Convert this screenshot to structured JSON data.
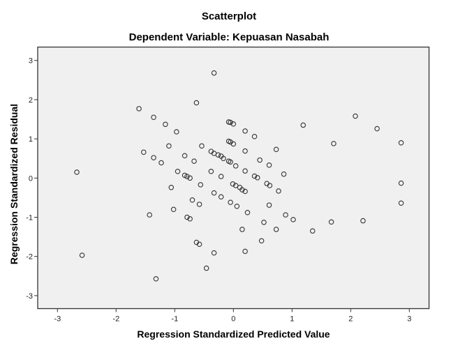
{
  "chart_data": {
    "type": "scatter",
    "title": "Scatterplot",
    "subtitle": "Dependent Variable: Kepuasan Nasabah",
    "xlabel": "Regression Standardized Predicted Value",
    "ylabel": "Regression Standardized Residual",
    "xlim": [
      -3.34,
      3.34
    ],
    "ylim": [
      -3.34,
      3.34
    ],
    "xticks": [
      -3,
      -2,
      -1,
      0,
      1,
      2,
      3
    ],
    "yticks": [
      -3,
      -2,
      -1,
      0,
      1,
      2,
      3
    ],
    "grid": false,
    "legend": null,
    "marker": "open-circle",
    "colors": {
      "plot_background": "#f0f0f0",
      "axis": "#333333",
      "marker": "#333333"
    },
    "points": [
      [
        -0.33,
        2.68
      ],
      [
        -0.63,
        1.92
      ],
      [
        -1.61,
        1.77
      ],
      [
        -1.36,
        1.55
      ],
      [
        -1.16,
        1.37
      ],
      [
        -0.97,
        1.18
      ],
      [
        -0.08,
        1.43
      ],
      [
        -0.05,
        1.42
      ],
      [
        0.0,
        1.38
      ],
      [
        0.2,
        1.2
      ],
      [
        0.36,
        1.06
      ],
      [
        1.19,
        1.35
      ],
      [
        2.08,
        1.58
      ],
      [
        2.45,
        1.26
      ],
      [
        1.71,
        0.88
      ],
      [
        2.86,
        0.9
      ],
      [
        -1.1,
        0.82
      ],
      [
        -1.53,
        0.66
      ],
      [
        -1.36,
        0.52
      ],
      [
        -1.23,
        0.39
      ],
      [
        -0.54,
        0.82
      ],
      [
        -0.08,
        0.94
      ],
      [
        -0.05,
        0.92
      ],
      [
        0.0,
        0.87
      ],
      [
        0.2,
        0.69
      ],
      [
        0.73,
        0.73
      ],
      [
        -0.83,
        0.57
      ],
      [
        -0.67,
        0.43
      ],
      [
        -0.38,
        0.68
      ],
      [
        -0.33,
        0.63
      ],
      [
        -0.26,
        0.59
      ],
      [
        -0.21,
        0.56
      ],
      [
        -0.17,
        0.5
      ],
      [
        -0.08,
        0.43
      ],
      [
        -0.05,
        0.41
      ],
      [
        0.04,
        0.31
      ],
      [
        0.45,
        0.46
      ],
      [
        0.61,
        0.33
      ],
      [
        -2.67,
        0.15
      ],
      [
        -0.95,
        0.17
      ],
      [
        -0.38,
        0.17
      ],
      [
        -0.21,
        0.04
      ],
      [
        0.2,
        0.18
      ],
      [
        -0.83,
        0.07
      ],
      [
        -0.79,
        0.04
      ],
      [
        -0.74,
        0.0
      ],
      [
        0.36,
        0.05
      ],
      [
        0.41,
        0.01
      ],
      [
        0.86,
        0.1
      ],
      [
        -1.06,
        -0.24
      ],
      [
        -1.02,
        -0.8
      ],
      [
        -1.43,
        -0.94
      ],
      [
        -2.58,
        -1.97
      ],
      [
        -1.32,
        -2.57
      ],
      [
        -0.56,
        -0.17
      ],
      [
        -0.33,
        -0.38
      ],
      [
        -0.21,
        -0.48
      ],
      [
        -0.01,
        -0.15
      ],
      [
        0.04,
        -0.19
      ],
      [
        0.11,
        -0.24
      ],
      [
        0.15,
        -0.3
      ],
      [
        0.2,
        -0.34
      ],
      [
        0.57,
        -0.14
      ],
      [
        0.62,
        -0.19
      ],
      [
        0.77,
        -0.33
      ],
      [
        -0.7,
        -0.56
      ],
      [
        -0.58,
        -0.67
      ],
      [
        -0.05,
        -0.62
      ],
      [
        0.06,
        -0.72
      ],
      [
        0.24,
        -0.88
      ],
      [
        0.61,
        -0.69
      ],
      [
        -0.79,
        -1.0
      ],
      [
        -0.74,
        -1.04
      ],
      [
        0.52,
        -1.13
      ],
      [
        0.89,
        -0.94
      ],
      [
        1.02,
        -1.06
      ],
      [
        0.15,
        -1.31
      ],
      [
        0.73,
        -1.31
      ],
      [
        0.48,
        -1.6
      ],
      [
        -0.63,
        -1.64
      ],
      [
        -0.58,
        -1.69
      ],
      [
        -0.33,
        -1.91
      ],
      [
        0.2,
        -1.87
      ],
      [
        -0.46,
        -2.3
      ],
      [
        2.86,
        -0.13
      ],
      [
        2.86,
        -0.64
      ],
      [
        1.35,
        -1.35
      ],
      [
        1.67,
        -1.12
      ],
      [
        2.21,
        -1.09
      ]
    ]
  }
}
